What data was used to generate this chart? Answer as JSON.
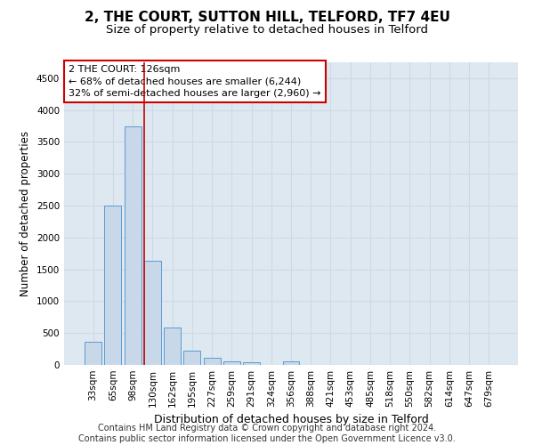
{
  "title": "2, THE COURT, SUTTON HILL, TELFORD, TF7 4EU",
  "subtitle": "Size of property relative to detached houses in Telford",
  "xlabel": "Distribution of detached houses by size in Telford",
  "ylabel": "Number of detached properties",
  "footer_line1": "Contains HM Land Registry data © Crown copyright and database right 2024.",
  "footer_line2": "Contains public sector information licensed under the Open Government Licence v3.0.",
  "categories": [
    "33sqm",
    "65sqm",
    "98sqm",
    "130sqm",
    "162sqm",
    "195sqm",
    "227sqm",
    "259sqm",
    "291sqm",
    "324sqm",
    "356sqm",
    "388sqm",
    "421sqm",
    "453sqm",
    "485sqm",
    "518sqm",
    "550sqm",
    "582sqm",
    "614sqm",
    "647sqm",
    "679sqm"
  ],
  "values": [
    370,
    2500,
    3750,
    1640,
    590,
    220,
    105,
    60,
    35,
    0,
    55,
    0,
    0,
    0,
    0,
    0,
    0,
    0,
    0,
    0,
    0
  ],
  "bar_color": "#c8d8e8",
  "bar_edge_color": "#5b9bd5",
  "grid_color": "#d0d8e8",
  "background_color": "#dde8f0",
  "annotation_line1": "2 THE COURT: 126sqm",
  "annotation_line2": "← 68% of detached houses are smaller (6,244)",
  "annotation_line3": "32% of semi-detached houses are larger (2,960) →",
  "annotation_box_color": "white",
  "annotation_box_edge_color": "#cc0000",
  "marker_line_color": "#cc0000",
  "ylim": [
    0,
    4750
  ],
  "yticks": [
    0,
    500,
    1000,
    1500,
    2000,
    2500,
    3000,
    3500,
    4000,
    4500
  ],
  "title_fontsize": 11,
  "subtitle_fontsize": 9.5,
  "xlabel_fontsize": 9,
  "ylabel_fontsize": 8.5,
  "tick_fontsize": 7.5,
  "annotation_fontsize": 8,
  "footer_fontsize": 7
}
